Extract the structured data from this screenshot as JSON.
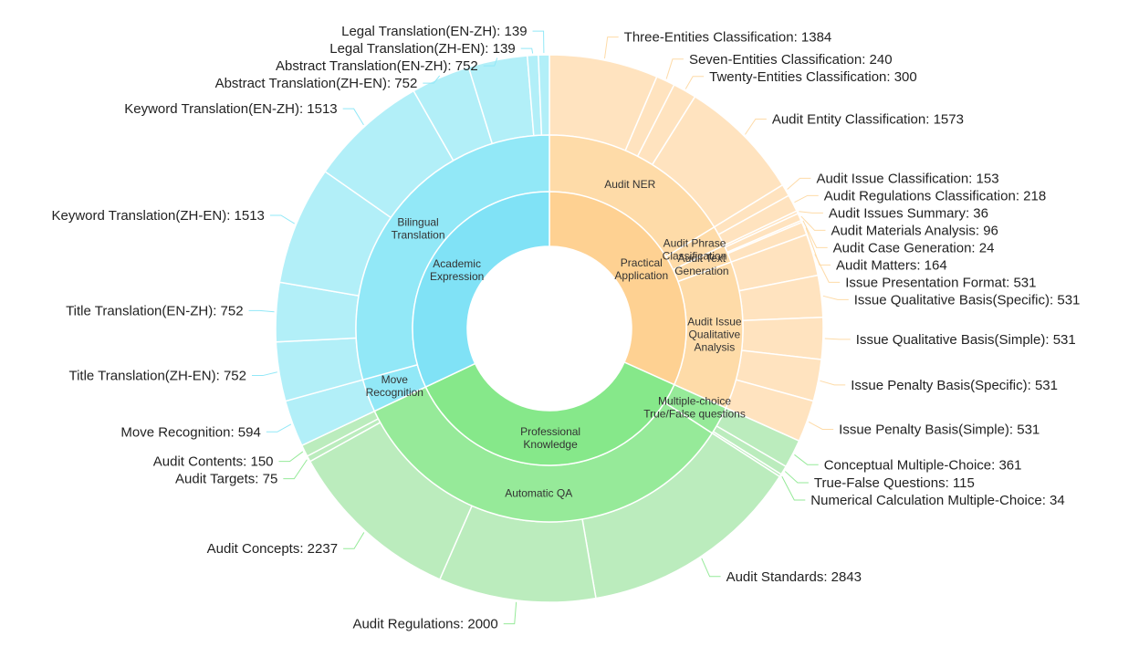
{
  "chart_data": {
    "type": "sunburst",
    "colors": {
      "academic": [
        "#80e2f6",
        "#92e8f7",
        "#b2eff8"
      ],
      "professional": [
        "#86e88a",
        "#96ea99",
        "#bbecbd"
      ],
      "practical": [
        "#fed192",
        "#fedba8",
        "#ffe3bf"
      ]
    },
    "inner": [
      {
        "name": "Academic\nExpression",
        "group": "academic"
      },
      {
        "name": "Professional\nKnowledge",
        "group": "professional"
      },
      {
        "name": "Practical\nApplication",
        "group": "practical"
      }
    ],
    "middle": [
      {
        "name": "Bilingual\nTranslation",
        "parent": "Academic Expression",
        "group": "academic"
      },
      {
        "name": "Move\nRecognition",
        "parent": "Academic Expression",
        "group": "academic"
      },
      {
        "name": "Automatic QA",
        "parent": "Professional Knowledge",
        "group": "professional"
      },
      {
        "name": "Multiple-choice\nTrue/False questions",
        "parent": "Professional Knowledge",
        "group": "professional"
      },
      {
        "name": "Audit NER",
        "parent": "Practical Application",
        "group": "practical"
      },
      {
        "name": "Audit Phrase\nClassification",
        "parent": "Practical Application",
        "group": "practical"
      },
      {
        "name": "Audit Text\nGeneration",
        "parent": "Practical Application",
        "group": "practical"
      },
      {
        "name": "Audit Issue\nQualitative\nAnalysis",
        "parent": "Practical Application",
        "group": "practical"
      }
    ],
    "leaves": [
      {
        "name": "Legal Translation(EN-ZH)",
        "value": 139,
        "parent": "Bilingual Translation"
      },
      {
        "name": "Legal Translation(ZH-EN)",
        "value": 139,
        "parent": "Bilingual Translation"
      },
      {
        "name": "Abstract Translation(EN-ZH)",
        "value": 752,
        "parent": "Bilingual Translation"
      },
      {
        "name": "Abstract Translation(ZH-EN)",
        "value": 752,
        "parent": "Bilingual Translation"
      },
      {
        "name": "Keyword Translation(EN-ZH)",
        "value": 1513,
        "parent": "Bilingual Translation"
      },
      {
        "name": "Keyword Translation(ZH-EN)",
        "value": 1513,
        "parent": "Bilingual Translation"
      },
      {
        "name": "Title Translation(EN-ZH)",
        "value": 752,
        "parent": "Bilingual Translation"
      },
      {
        "name": "Title Translation(ZH-EN)",
        "value": 752,
        "parent": "Bilingual Translation"
      },
      {
        "name": "Move Recognition",
        "value": 594,
        "parent": "Move Recognition"
      },
      {
        "name": "Audit Contents",
        "value": 150,
        "parent": "Automatic QA"
      },
      {
        "name": "Audit Targets",
        "value": 75,
        "parent": "Automatic QA"
      },
      {
        "name": "Audit Concepts",
        "value": 2237,
        "parent": "Automatic QA"
      },
      {
        "name": "Audit Regulations",
        "value": 2000,
        "parent": "Automatic QA"
      },
      {
        "name": "Audit Standards",
        "value": 2843,
        "parent": "Automatic QA"
      },
      {
        "name": "Numerical Calculation Multiple-Choice",
        "value": 34,
        "parent": "Multiple-choice True/False questions"
      },
      {
        "name": "True-False Questions",
        "value": 115,
        "parent": "Multiple-choice True/False questions"
      },
      {
        "name": "Conceptual Multiple-Choice",
        "value": 361,
        "parent": "Multiple-choice True/False questions"
      },
      {
        "name": "Issue Penalty Basis(Simple)",
        "value": 531,
        "parent": "Audit Issue Qualitative Analysis"
      },
      {
        "name": "Issue Penalty Basis(Specific)",
        "value": 531,
        "parent": "Audit Issue Qualitative Analysis"
      },
      {
        "name": "Issue Qualitative Basis(Simple)",
        "value": 531,
        "parent": "Audit Issue Qualitative Analysis"
      },
      {
        "name": "Issue Qualitative Basis(Specific)",
        "value": 531,
        "parent": "Audit Issue Qualitative Analysis"
      },
      {
        "name": "Issue Presentation Format",
        "value": 531,
        "parent": "Audit Issue Qualitative Analysis"
      },
      {
        "name": "Audit Matters",
        "value": 164,
        "parent": "Audit Text Generation"
      },
      {
        "name": "Audit Case Generation",
        "value": 24,
        "parent": "Audit Text Generation"
      },
      {
        "name": "Audit Materials Analysis",
        "value": 96,
        "parent": "Audit Text Generation"
      },
      {
        "name": "Audit Issues Summary",
        "value": 36,
        "parent": "Audit Text Generation"
      },
      {
        "name": "Audit Regulations Classification",
        "value": 218,
        "parent": "Audit Phrase Classification"
      },
      {
        "name": "Audit Issue Classification",
        "value": 153,
        "parent": "Audit Phrase Classification"
      },
      {
        "name": "Audit Entity Classification",
        "value": 1573,
        "parent": "Audit NER"
      },
      {
        "name": "Twenty-Entities Classification",
        "value": 300,
        "parent": "Audit NER"
      },
      {
        "name": "Seven-Entities Classification",
        "value": 240,
        "parent": "Audit NER"
      },
      {
        "name": "Three-Entities Classification",
        "value": 1384,
        "parent": "Audit NER"
      }
    ]
  }
}
